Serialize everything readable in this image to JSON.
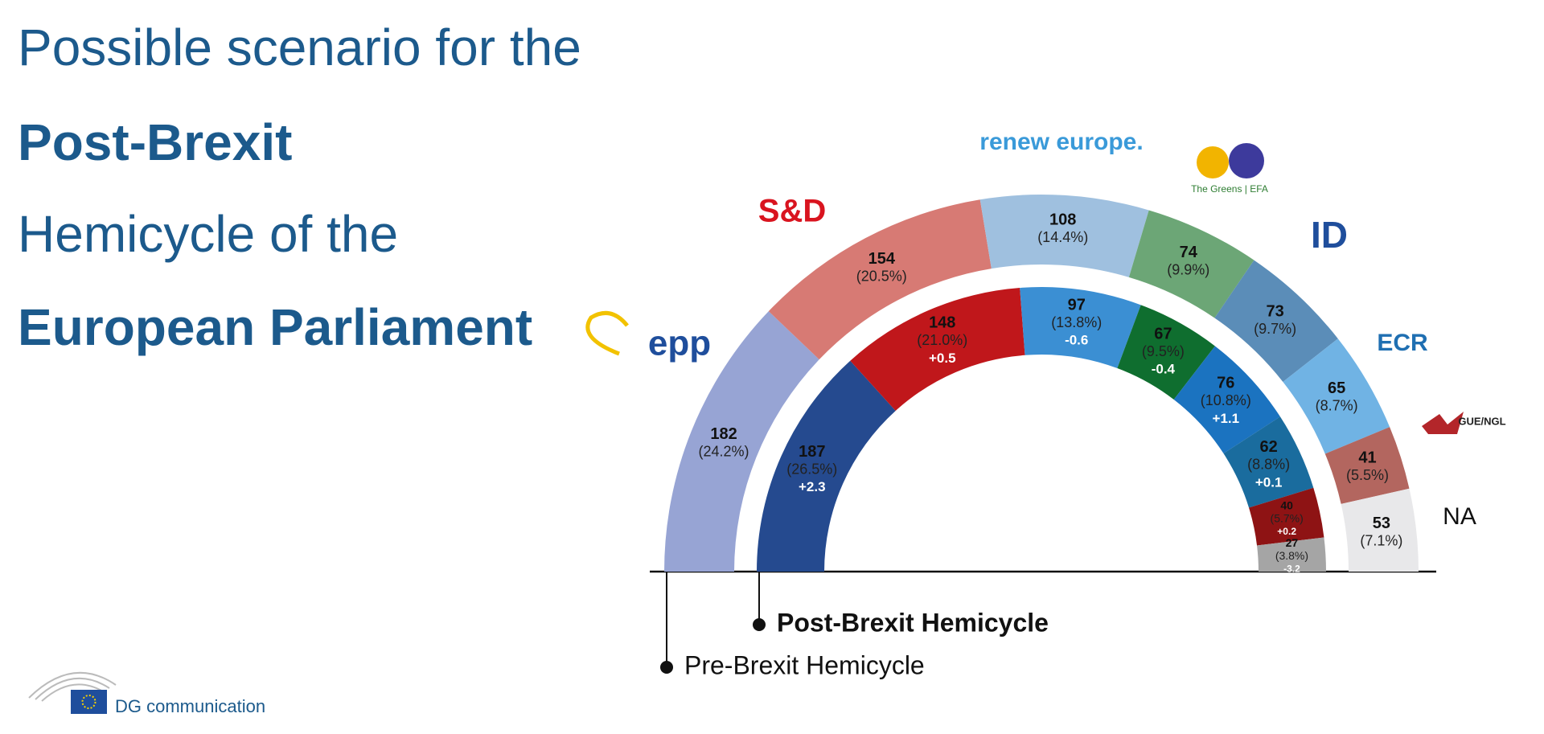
{
  "chart_data": {
    "type": "hemicycle",
    "title_lines": [
      "Possible scenario for the",
      "Post-Brexit",
      "Hemicycle of the",
      "European Parliament"
    ],
    "party_logos": [
      "epp",
      "S&D",
      "renew europe.",
      "The Greens | EFA",
      "ID",
      "ECR",
      "GUE/NGL",
      "NA"
    ],
    "series": [
      {
        "name": "Pre-Brexit Hemicycle",
        "colors": [
          "#97a4d4",
          "#d77a74",
          "#9fc0df",
          "#6ca676",
          "#5b8db8",
          "#70b3e4",
          "#b3665f",
          "#e8e8ea"
        ],
        "values": [
          182,
          154,
          108,
          74,
          73,
          65,
          41,
          53
        ],
        "shares": [
          24.2,
          20.5,
          14.4,
          9.9,
          9.7,
          8.7,
          5.5,
          7.1
        ],
        "share_labels": [
          "(24.2%)",
          "(20.5%)",
          "(14.4%)",
          "(9.9%)",
          "(9.7%)",
          "(8.7%)",
          "(5.5%)",
          "(7.1%)"
        ]
      },
      {
        "name": "Post-Brexit Hemicycle",
        "colors": [
          "#254a8f",
          "#c0171b",
          "#3b8fd3",
          "#0f6e2f",
          "#1b73c0",
          "#1a6c9e",
          "#8e1314",
          "#a5a5a5"
        ],
        "values": [
          187,
          148,
          97,
          67,
          76,
          62,
          40,
          27
        ],
        "shares": [
          26.5,
          21.0,
          13.8,
          9.5,
          10.8,
          8.8,
          5.7,
          3.8
        ],
        "share_labels": [
          "(26.5%)",
          "(21.0%)",
          "(13.8%)",
          "(9.5%)",
          "(10.8%)",
          "(8.8%)",
          "(5.7%)",
          "(3.8%)"
        ],
        "changes": [
          2.3,
          0.5,
          -0.6,
          -0.4,
          1.1,
          0.1,
          0.2,
          -3.2
        ],
        "change_labels": [
          "+2.3",
          "+0.5",
          "-0.6",
          "-0.4",
          "+1.1",
          "+0.1",
          "+0.2",
          "-3.2"
        ]
      }
    ],
    "footer": "DG communication"
  }
}
